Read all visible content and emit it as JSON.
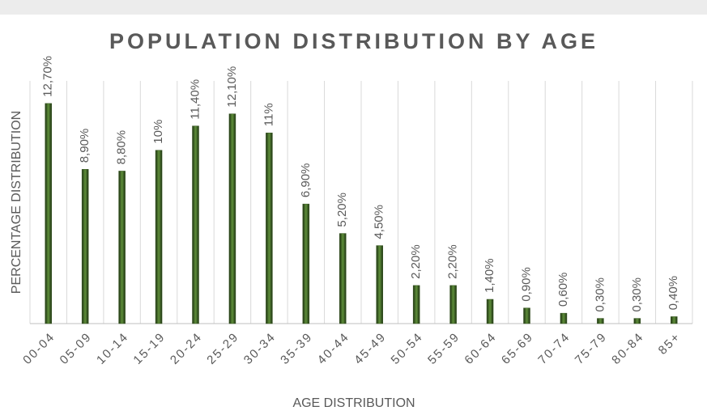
{
  "chart_data": {
    "type": "bar",
    "title": "POPULATION DISTRIBUTION BY AGE",
    "x_label": "AGE DISTRIBUTION",
    "y_label": "PERCENTAGE DISTRIBUTION",
    "categories": [
      "00-04",
      "05-09",
      "10-14",
      "15-19",
      "20-24",
      "25-29",
      "30-34",
      "35-39",
      "40-44",
      "45-49",
      "50-54",
      "55-59",
      "60-64",
      "65-69",
      "70-74",
      "75-79",
      "80-84",
      "85+"
    ],
    "values": [
      12.7,
      8.9,
      8.8,
      10,
      11.4,
      12.1,
      11,
      6.9,
      5.2,
      4.5,
      2.2,
      2.2,
      1.4,
      0.9,
      0.6,
      0.3,
      0.3,
      0.4
    ],
    "value_labels": [
      "12,70%",
      "8,90%",
      "8,80%",
      "10%",
      "11,40%",
      "12,10%",
      "11%",
      "6,90%",
      "5,20%",
      "4,50%",
      "2,20%",
      "2,20%",
      "1,40%",
      "0,90%",
      "0,60%",
      "0,30%",
      "0,30%",
      "0,40%"
    ],
    "color": "#385723",
    "ylim": [
      0,
      14
    ],
    "grid": true
  }
}
